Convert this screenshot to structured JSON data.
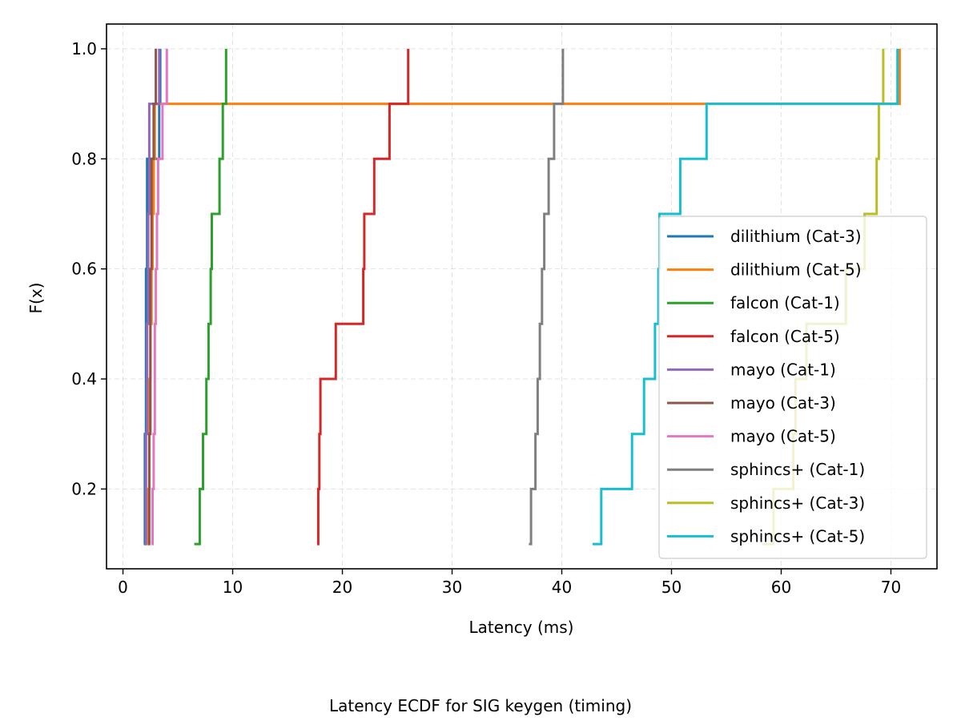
{
  "chart_data": {
    "type": "line",
    "step": true,
    "title": "",
    "caption": "Latency ECDF for SIG keygen (timing)",
    "xlabel": "Latency (ms)",
    "ylabel": "F(x)",
    "xlim": [
      -1.5,
      74.2
    ],
    "ylim": [
      0.055,
      1.045
    ],
    "xticks": [
      0,
      10,
      20,
      30,
      40,
      50,
      60,
      70
    ],
    "xtick_labels": [
      "0",
      "10",
      "20",
      "30",
      "40",
      "50",
      "60",
      "70"
    ],
    "yticks": [
      0.2,
      0.4,
      0.6,
      0.8,
      1.0
    ],
    "ytick_labels": [
      "0.2",
      "0.4",
      "0.6",
      "0.8",
      "1.0"
    ],
    "grid": true,
    "legend_position": "center-right",
    "series": [
      {
        "name": "dilithium (Cat-3)",
        "color": "#1f77b4",
        "x": [
          1.9,
          2.0,
          2.0,
          2.1,
          2.1,
          2.1,
          2.2,
          2.2,
          3.3,
          3.4
        ],
        "y": [
          0.1,
          0.2,
          0.3,
          0.4,
          0.5,
          0.6,
          0.7,
          0.8,
          0.9,
          1.0
        ]
      },
      {
        "name": "dilithium (Cat-5)",
        "color": "#ff7f0e",
        "x": [
          2.2,
          2.3,
          2.4,
          2.4,
          2.5,
          2.6,
          2.7,
          2.8,
          2.9,
          70.8
        ],
        "y": [
          0.1,
          0.2,
          0.3,
          0.4,
          0.5,
          0.6,
          0.7,
          0.8,
          0.9,
          1.0
        ]
      },
      {
        "name": "falcon (Cat-1)",
        "color": "#2ca02c",
        "x": [
          6.5,
          7.0,
          7.3,
          7.6,
          7.8,
          8.0,
          8.1,
          8.8,
          9.1,
          9.4
        ],
        "y": [
          0.1,
          0.2,
          0.3,
          0.4,
          0.5,
          0.6,
          0.7,
          0.8,
          0.9,
          1.0
        ]
      },
      {
        "name": "falcon (Cat-5)",
        "color": "#d62728",
        "x": [
          17.7,
          17.8,
          17.9,
          18.0,
          19.4,
          21.9,
          22.0,
          22.9,
          24.3,
          26.0
        ],
        "y": [
          0.1,
          0.2,
          0.3,
          0.4,
          0.5,
          0.6,
          0.7,
          0.8,
          0.9,
          1.0
        ]
      },
      {
        "name": "mayo (Cat-1)",
        "color": "#9467bd",
        "x": [
          2.0,
          2.1,
          2.1,
          2.2,
          2.2,
          2.3,
          2.3,
          2.4,
          2.4,
          3.3
        ],
        "y": [
          0.1,
          0.2,
          0.3,
          0.4,
          0.5,
          0.6,
          0.7,
          0.8,
          0.9,
          1.0
        ]
      },
      {
        "name": "mayo (Cat-3)",
        "color": "#8c564b",
        "x": [
          2.3,
          2.4,
          2.4,
          2.5,
          2.5,
          2.5,
          2.6,
          2.6,
          2.8,
          3.0
        ],
        "y": [
          0.1,
          0.2,
          0.3,
          0.4,
          0.5,
          0.6,
          0.7,
          0.8,
          0.9,
          1.0
        ]
      },
      {
        "name": "mayo (Cat-5)",
        "color": "#e377c2",
        "x": [
          2.6,
          2.7,
          2.8,
          2.9,
          2.9,
          3.0,
          3.1,
          3.2,
          3.6,
          4.0
        ],
        "y": [
          0.1,
          0.2,
          0.3,
          0.4,
          0.5,
          0.6,
          0.7,
          0.8,
          0.9,
          1.0
        ]
      },
      {
        "name": "sphincs+ (Cat-1)",
        "color": "#7f7f7f",
        "x": [
          37.0,
          37.2,
          37.6,
          37.8,
          38.0,
          38.2,
          38.4,
          38.8,
          39.3,
          40.1
        ],
        "y": [
          0.1,
          0.2,
          0.3,
          0.4,
          0.5,
          0.6,
          0.7,
          0.8,
          0.9,
          1.0
        ]
      },
      {
        "name": "sphincs+ (Cat-3)",
        "color": "#bcbd22",
        "x": [
          58.3,
          59.3,
          61.1,
          61.3,
          62.3,
          65.9,
          67.6,
          68.7,
          68.9,
          69.3
        ],
        "y": [
          0.1,
          0.2,
          0.3,
          0.4,
          0.5,
          0.6,
          0.7,
          0.8,
          0.9,
          1.0
        ]
      },
      {
        "name": "sphincs+ (Cat-5)",
        "color": "#17becf",
        "x": [
          42.8,
          43.6,
          46.4,
          47.5,
          48.5,
          48.8,
          48.9,
          50.8,
          53.2,
          70.6
        ],
        "y": [
          0.1,
          0.2,
          0.3,
          0.4,
          0.5,
          0.6,
          0.7,
          0.8,
          0.9,
          1.0
        ]
      }
    ]
  }
}
